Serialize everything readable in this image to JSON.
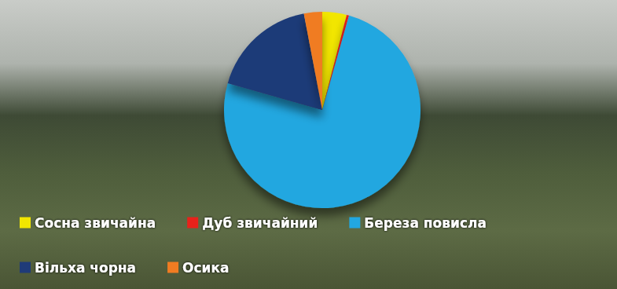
{
  "chart_data": {
    "type": "pie",
    "categories": [
      "Сосна звичайна",
      "Дуб звичайний",
      "Береза повисла",
      "Вільха чорна",
      "Осика"
    ],
    "values": [
      4,
      0.4,
      75,
      17.6,
      3
    ],
    "colors": [
      "#f2e600",
      "#e8221b",
      "#22a7e0",
      "#1f3b78",
      "#f07c22"
    ],
    "legend": "bottom"
  }
}
